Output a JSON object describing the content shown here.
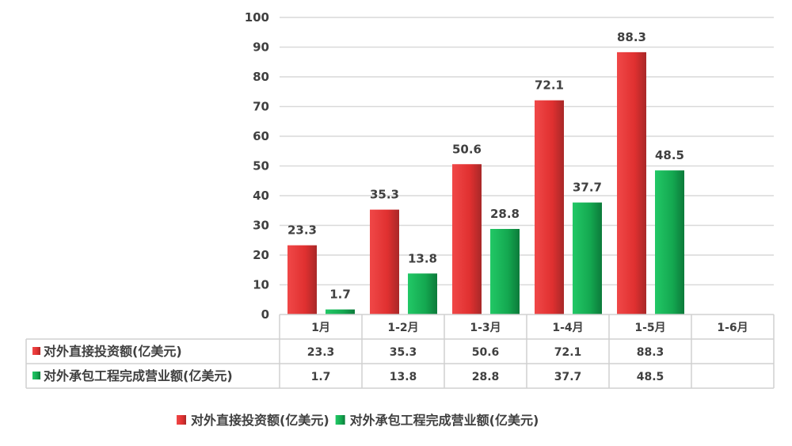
{
  "chart_data": {
    "type": "bar",
    "title": "",
    "xlabel": "",
    "ylabel": "",
    "ylim": [
      0,
      100
    ],
    "yticks": [
      0,
      10,
      20,
      30,
      40,
      50,
      60,
      70,
      80,
      90,
      100
    ],
    "grid": true,
    "categories": [
      "1月",
      "1-2月",
      "1-3月",
      "1-4月",
      "1-5月",
      "1-6月"
    ],
    "series": [
      {
        "name": "对外直接投资额(亿美元)",
        "color": "#e03c3c",
        "values": [
          23.3,
          35.3,
          50.6,
          72.1,
          88.3,
          null
        ]
      },
      {
        "name": "对外承包工程完成营业额(亿美元)",
        "color": "#1fb45a",
        "values": [
          1.7,
          13.8,
          28.8,
          37.7,
          48.5,
          null
        ]
      }
    ],
    "data_table": true,
    "legend": "bottom"
  }
}
